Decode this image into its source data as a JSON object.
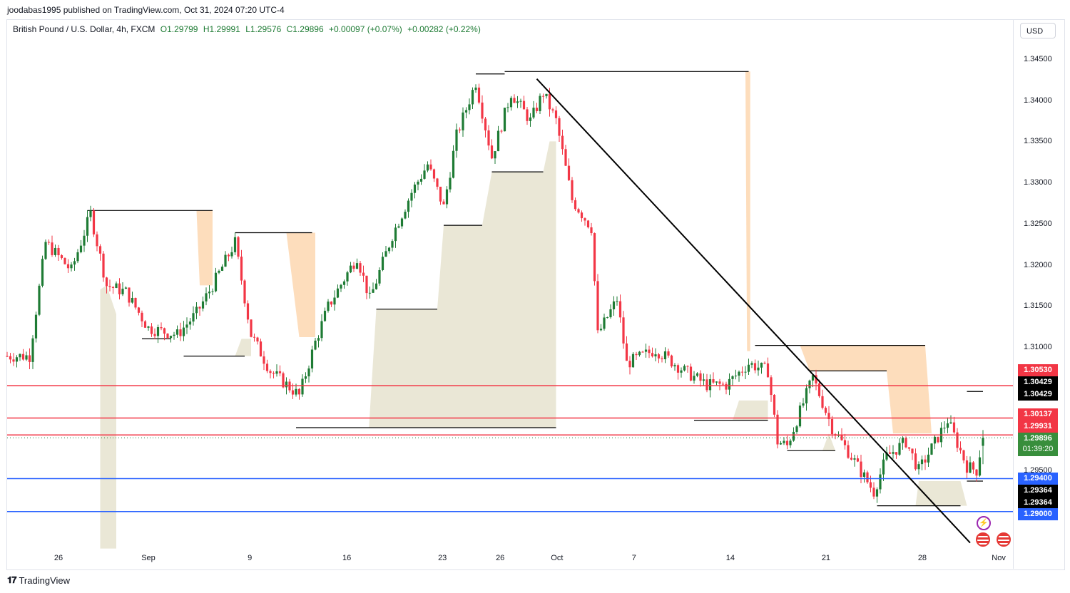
{
  "publisher_line": "joodabas1995 published on TradingView.com, Oct 31, 2024 07:20 UTC-4",
  "legend": {
    "symbol": "British Pound / U.S. Dollar, 4h, FXCM",
    "open": "O1.29799",
    "high": "H1.29991",
    "low": "L1.29576",
    "close": "C1.29896",
    "change": "+0.00097 (+0.07%)",
    "change2": "+0.00282 (+0.22%)"
  },
  "currency_button": "USD",
  "branding": "TradingView",
  "colors": {
    "up": "#1e7b34",
    "down": "#f23645",
    "red_line": "#f23645",
    "blue_line": "#2962ff",
    "beige": "#e8e4d2",
    "orange": "#fdd9b5"
  },
  "chart_data": {
    "type": "candlestick",
    "title": "British Pound / U.S. Dollar, 4h, FXCM",
    "x_unit": "4h bar index",
    "ylim": [
      1.2855,
      1.348
    ],
    "y_ticks": [
      "1.34500",
      "1.34000",
      "1.33500",
      "1.33000",
      "1.32500",
      "1.32000",
      "1.31500",
      "1.31000",
      "1.29500"
    ],
    "y_tick_values": [
      1.345,
      1.34,
      1.335,
      1.33,
      1.325,
      1.32,
      1.315,
      1.31,
      1.295
    ],
    "x_ticks": [
      {
        "label": "26",
        "bar": 16
      },
      {
        "label": "Sep",
        "bar": 44
      },
      {
        "label": "9",
        "bar": 75.6
      },
      {
        "label": "16",
        "bar": 105.8
      },
      {
        "label": "23",
        "bar": 135.6
      },
      {
        "label": "26",
        "bar": 153.6
      },
      {
        "label": "Oct",
        "bar": 171.3
      },
      {
        "label": "7",
        "bar": 195.3
      },
      {
        "label": "14",
        "bar": 225.3
      },
      {
        "label": "21",
        "bar": 255.1
      },
      {
        "label": "28",
        "bar": 285.1
      },
      {
        "label": "Nov",
        "bar": 308.9
      }
    ],
    "close_path": [
      [
        0,
        1.3089
      ],
      [
        7,
        1.3089
      ],
      [
        12,
        1.3227
      ],
      [
        20,
        1.3193
      ],
      [
        26,
        1.3262
      ],
      [
        31,
        1.3175
      ],
      [
        37,
        1.3167
      ],
      [
        44,
        1.3123
      ],
      [
        53,
        1.3115
      ],
      [
        59,
        1.3141
      ],
      [
        64,
        1.3175
      ],
      [
        71,
        1.3227
      ],
      [
        76,
        1.3115
      ],
      [
        82,
        1.3071
      ],
      [
        91,
        1.3041
      ],
      [
        96,
        1.3106
      ],
      [
        100,
        1.3149
      ],
      [
        109,
        1.321
      ],
      [
        113,
        1.3158
      ],
      [
        120,
        1.3236
      ],
      [
        126,
        1.3288
      ],
      [
        131,
        1.3322
      ],
      [
        136,
        1.327
      ],
      [
        140,
        1.3357
      ],
      [
        146,
        1.3422
      ],
      [
        151,
        1.3331
      ],
      [
        157,
        1.3409
      ],
      [
        163,
        1.3375
      ],
      [
        167,
        1.3409
      ],
      [
        171,
        1.3375
      ],
      [
        176,
        1.3279
      ],
      [
        182,
        1.3245
      ],
      [
        184,
        1.3115
      ],
      [
        190,
        1.3158
      ],
      [
        193,
        1.308
      ],
      [
        202,
        1.3097
      ],
      [
        211,
        1.3071
      ],
      [
        218,
        1.3054
      ],
      [
        224,
        1.3054
      ],
      [
        231,
        1.308
      ],
      [
        237,
        1.3071
      ],
      [
        240,
        1.2985
      ],
      [
        243,
        1.298
      ],
      [
        251,
        1.3063
      ],
      [
        257,
        1.3002
      ],
      [
        263,
        1.2967
      ],
      [
        270,
        1.2924
      ],
      [
        274,
        1.2967
      ],
      [
        280,
        1.2985
      ],
      [
        284,
        1.295
      ],
      [
        293,
        1.3011
      ],
      [
        299,
        1.2955
      ],
      [
        302,
        1.295
      ],
      [
        304,
        1.299
      ]
    ],
    "last_bar": {
      "open": 1.29799,
      "high": 1.29991,
      "low": 1.29576,
      "close": 1.29896
    },
    "levels": [
      [
        155,
        231,
        1.3435
      ],
      [
        146,
        155,
        1.3432
      ],
      [
        25,
        64,
        1.3266
      ],
      [
        71,
        95,
        1.3239
      ],
      [
        90,
        171,
        1.3002
      ],
      [
        233,
        286,
        1.3102
      ],
      [
        250,
        274,
        1.3071
      ],
      [
        271,
        297,
        1.2907
      ],
      [
        151,
        167,
        1.3313
      ],
      [
        136,
        148,
        1.3248
      ],
      [
        115,
        134,
        1.3146
      ],
      [
        55,
        74,
        1.3089
      ],
      [
        42,
        51,
        1.311
      ],
      [
        214,
        237,
        1.3011
      ],
      [
        243,
        258,
        1.2974
      ],
      [
        299,
        304,
        1.3046
      ],
      [
        299,
        304,
        1.2937
      ]
    ],
    "demand_zones": [
      [
        [
          112.7,
          1.3002
        ],
        [
          115,
          1.3146
        ],
        [
          134,
          1.3146
        ],
        [
          136,
          1.3248
        ],
        [
          148,
          1.3248
        ],
        [
          151,
          1.3313
        ],
        [
          167,
          1.3313
        ],
        [
          169,
          1.335
        ],
        [
          171,
          1.335
        ],
        [
          171,
          1.3002
        ]
      ],
      [
        [
          29,
          1.317
        ],
        [
          31,
          1.3175
        ],
        [
          34,
          1.314
        ],
        [
          34,
          1.2855
        ],
        [
          29,
          1.2855
        ]
      ],
      [
        [
          71,
          1.3089
        ],
        [
          73,
          1.311
        ],
        [
          76,
          1.311
        ],
        [
          76,
          1.3089
        ]
      ],
      [
        [
          226,
          1.3011
        ],
        [
          228,
          1.3035
        ],
        [
          237,
          1.3035
        ],
        [
          237,
          1.3011
        ]
      ],
      [
        [
          254,
          1.2974
        ],
        [
          256,
          1.2995
        ],
        [
          258,
          1.2974
        ]
      ],
      [
        [
          283,
          1.2907
        ],
        [
          284,
          1.2937
        ],
        [
          297,
          1.2937
        ],
        [
          299,
          1.2907
        ]
      ]
    ],
    "supply_zones": [
      [
        [
          59,
          1.3266
        ],
        [
          64,
          1.3266
        ],
        [
          64,
          1.3175
        ],
        [
          60,
          1.3175
        ]
      ],
      [
        [
          87,
          1.3239
        ],
        [
          96,
          1.3239
        ],
        [
          96,
          1.3112
        ],
        [
          91,
          1.3112
        ]
      ],
      [
        [
          230,
          1.3435
        ],
        [
          231.5,
          1.3435
        ],
        [
          231.5,
          1.3095
        ],
        [
          230.5,
          1.3095
        ]
      ],
      [
        [
          247,
          1.3102
        ],
        [
          286,
          1.3102
        ],
        [
          288,
          1.2995
        ],
        [
          276,
          1.2995
        ],
        [
          274,
          1.3071
        ],
        [
          250,
          1.3071
        ]
      ]
    ],
    "trendline": [
      [
        165,
        1.3426
      ],
      [
        300,
        1.2862
      ]
    ],
    "horizontal_lines": [
      {
        "price": 1.3053,
        "color": "red"
      },
      {
        "price": 1.30137,
        "color": "red"
      },
      {
        "price": 1.29931,
        "color": "red"
      },
      {
        "price": 1.294,
        "color": "blue"
      },
      {
        "price": 1.29,
        "color": "blue"
      }
    ],
    "current_price": 1.29896,
    "price_labels": [
      {
        "text": "1.30530",
        "color": "red"
      },
      {
        "text": "1.30429",
        "color": "black"
      },
      {
        "text": "1.30429",
        "color": "black"
      },
      {
        "text": "1.30137",
        "color": "red"
      },
      {
        "text": "1.29931",
        "color": "red"
      },
      {
        "text": "1.29896",
        "sub": "01:39:20",
        "color": "green"
      },
      {
        "text": "1.29400",
        "color": "blue"
      },
      {
        "text": "1.29364",
        "color": "black"
      },
      {
        "text": "1.29364",
        "color": "black"
      },
      {
        "text": "1.29000",
        "color": "blue"
      }
    ]
  }
}
